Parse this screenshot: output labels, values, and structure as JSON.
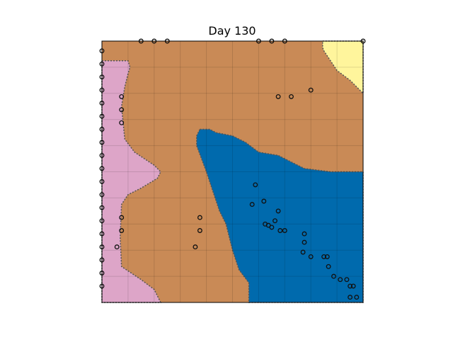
{
  "chart_data": {
    "type": "heatmap",
    "title": "Day 130",
    "xlim": [
      0,
      40
    ],
    "ylim": [
      0,
      40
    ],
    "grid": true,
    "ticks": "none",
    "region_colors": {
      "background": "#c98a56",
      "blue": "#006aad",
      "pink": "#dda5c8",
      "yellow": "#fff59c",
      "boundary": "#555555"
    },
    "regions": [
      {
        "key": "blue",
        "polygon": [
          [
            15,
            26.5
          ],
          [
            16.5,
            26.5
          ],
          [
            17.5,
            26
          ],
          [
            20,
            25.5
          ],
          [
            22,
            24.5
          ],
          [
            24,
            23
          ],
          [
            27,
            22.5
          ],
          [
            29,
            21.5
          ],
          [
            31,
            20.5
          ],
          [
            35,
            20
          ],
          [
            40,
            20
          ],
          [
            40,
            0
          ],
          [
            22.5,
            0
          ],
          [
            22.5,
            3
          ],
          [
            21,
            5
          ],
          [
            20,
            8
          ],
          [
            19.5,
            10
          ],
          [
            19,
            12
          ],
          [
            18,
            14
          ],
          [
            17,
            17
          ],
          [
            16,
            20
          ],
          [
            14.5,
            24
          ],
          [
            14.5,
            25.5
          ]
        ]
      },
      {
        "key": "pink",
        "polygon": [
          [
            0,
            37
          ],
          [
            4,
            37
          ],
          [
            4.3,
            36
          ],
          [
            4,
            35
          ],
          [
            3.5,
            33
          ],
          [
            3,
            30
          ],
          [
            3.5,
            25
          ],
          [
            5,
            23
          ],
          [
            8,
            21
          ],
          [
            9,
            20
          ],
          [
            8.5,
            19
          ],
          [
            6,
            17.5
          ],
          [
            4,
            16.5
          ],
          [
            3,
            15
          ],
          [
            2.8,
            10
          ],
          [
            3,
            5.5
          ],
          [
            6,
            3.5
          ],
          [
            8,
            2
          ],
          [
            9,
            0
          ],
          [
            0,
            0
          ]
        ]
      },
      {
        "key": "yellow",
        "polygon": [
          [
            33.8,
            40
          ],
          [
            40,
            40
          ],
          [
            40,
            32
          ],
          [
            39,
            33
          ],
          [
            38,
            34
          ],
          [
            36,
            35.5
          ],
          [
            35,
            37
          ],
          [
            34,
            38.5
          ],
          [
            33.8,
            39
          ]
        ]
      }
    ],
    "points": [
      [
        6,
        40
      ],
      [
        8,
        40
      ],
      [
        10,
        40
      ],
      [
        24,
        40
      ],
      [
        26,
        40
      ],
      [
        28,
        40
      ],
      [
        0,
        38.5
      ],
      [
        0,
        36.5
      ],
      [
        0,
        34.5
      ],
      [
        0,
        32.5
      ],
      [
        0,
        30.5
      ],
      [
        0,
        28.5
      ],
      [
        0,
        26.5
      ],
      [
        0,
        24.5
      ],
      [
        0,
        22.5
      ],
      [
        0,
        20.5
      ],
      [
        0,
        18.5
      ],
      [
        0,
        16.5
      ],
      [
        0,
        14.5
      ],
      [
        0,
        12.5
      ],
      [
        0,
        10.5
      ],
      [
        0,
        8.5
      ],
      [
        0,
        6.5
      ],
      [
        0,
        4.5
      ],
      [
        0,
        2.5
      ],
      [
        3,
        31.5
      ],
      [
        3,
        29.5
      ],
      [
        3,
        27.5
      ],
      [
        3,
        13
      ],
      [
        3,
        11
      ],
      [
        2.3,
        8.5
      ],
      [
        15,
        13
      ],
      [
        15,
        11
      ],
      [
        14.3,
        8.5
      ],
      [
        27,
        31.5
      ],
      [
        29,
        31.5
      ],
      [
        32,
        32.5
      ],
      [
        23.5,
        18
      ],
      [
        23,
        15
      ],
      [
        24.8,
        15.5
      ],
      [
        27,
        14
      ],
      [
        26.5,
        12.5
      ],
      [
        26,
        11.5
      ],
      [
        25,
        12
      ],
      [
        25.5,
        11.8
      ],
      [
        28,
        11
      ],
      [
        27.3,
        11
      ],
      [
        31,
        10.5
      ],
      [
        31,
        9.2
      ],
      [
        30.8,
        7.7
      ],
      [
        32,
        7
      ],
      [
        34,
        7
      ],
      [
        34.5,
        7
      ],
      [
        34.7,
        5.5
      ],
      [
        35.5,
        4
      ],
      [
        36.5,
        3.5
      ],
      [
        37.5,
        3.5
      ],
      [
        38,
        2.5
      ],
      [
        38.5,
        2.5
      ],
      [
        38,
        0.8
      ],
      [
        39,
        0.8
      ],
      [
        40,
        40
      ]
    ]
  }
}
